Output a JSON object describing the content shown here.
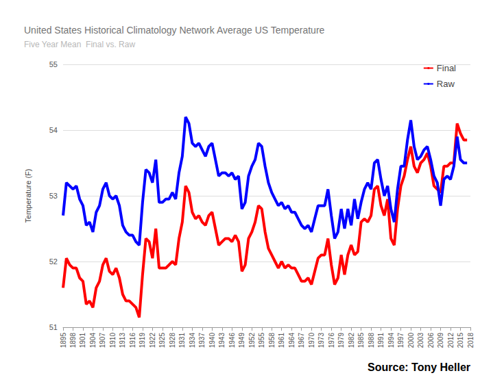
{
  "chart_data": {
    "type": "line",
    "title": "United States Historical Climatology Network Average US Temperature",
    "subtitle": "Five Year Mean  Final vs. Raw",
    "y_label": "Temperature (F)",
    "annotation": "Source: Tony Heller",
    "x": [
      1895,
      1896,
      1897,
      1898,
      1899,
      1900,
      1901,
      1902,
      1903,
      1904,
      1905,
      1906,
      1907,
      1908,
      1909,
      1910,
      1911,
      1912,
      1913,
      1914,
      1915,
      1916,
      1917,
      1918,
      1919,
      1920,
      1921,
      1922,
      1923,
      1924,
      1925,
      1926,
      1927,
      1928,
      1929,
      1930,
      1931,
      1932,
      1933,
      1934,
      1935,
      1936,
      1937,
      1938,
      1939,
      1940,
      1941,
      1942,
      1943,
      1944,
      1945,
      1946,
      1947,
      1948,
      1949,
      1950,
      1951,
      1952,
      1953,
      1954,
      1955,
      1956,
      1957,
      1958,
      1959,
      1960,
      1961,
      1962,
      1963,
      1964,
      1965,
      1966,
      1967,
      1968,
      1969,
      1970,
      1971,
      1972,
      1973,
      1974,
      1975,
      1976,
      1977,
      1978,
      1979,
      1980,
      1981,
      1982,
      1983,
      1984,
      1985,
      1986,
      1987,
      1988,
      1989,
      1990,
      1991,
      1992,
      1993,
      1994,
      1995,
      1996,
      1997,
      1998,
      1999,
      2000,
      2001,
      2002,
      2003,
      2004,
      2005,
      2006,
      2007,
      2008,
      2009,
      2010,
      2011,
      2012,
      2013,
      2014,
      2015,
      2016,
      2017
    ],
    "series": [
      {
        "name": "Final",
        "color": "#ff0000",
        "values": [
          51.6,
          52.05,
          51.95,
          51.9,
          51.9,
          51.75,
          51.7,
          51.35,
          51.4,
          51.3,
          51.6,
          51.7,
          51.95,
          52.05,
          51.85,
          51.8,
          51.9,
          51.75,
          51.5,
          51.4,
          51.4,
          51.35,
          51.3,
          51.15,
          51.8,
          52.35,
          52.3,
          52.05,
          52.5,
          51.9,
          51.9,
          51.9,
          51.95,
          52.0,
          51.95,
          52.35,
          52.6,
          53.15,
          53.05,
          52.75,
          52.65,
          52.7,
          52.6,
          52.55,
          52.7,
          52.75,
          52.5,
          52.25,
          52.3,
          52.35,
          52.35,
          52.3,
          52.4,
          52.3,
          51.85,
          51.95,
          52.35,
          52.45,
          52.6,
          52.85,
          52.8,
          52.45,
          52.2,
          52.1,
          52.0,
          51.9,
          52.0,
          51.9,
          51.95,
          51.9,
          51.9,
          51.8,
          51.7,
          51.7,
          51.75,
          51.65,
          51.85,
          52.05,
          52.1,
          52.1,
          52.35,
          51.95,
          51.65,
          51.75,
          52.1,
          51.8,
          52.1,
          52.25,
          52.1,
          52.15,
          52.6,
          52.65,
          52.6,
          52.7,
          53.1,
          53.15,
          52.85,
          52.7,
          52.95,
          52.35,
          52.25,
          52.8,
          53.15,
          53.3,
          53.55,
          53.75,
          53.45,
          53.35,
          53.5,
          53.55,
          53.65,
          53.45,
          53.15,
          53.1,
          53.05,
          53.45,
          53.45,
          53.5,
          53.5,
          54.1,
          53.95,
          53.85,
          53.85
        ]
      },
      {
        "name": "Raw",
        "color": "#0000ff",
        "values": [
          52.7,
          53.2,
          53.15,
          53.1,
          53.15,
          52.95,
          52.85,
          52.55,
          52.6,
          52.45,
          52.75,
          52.85,
          53.1,
          53.2,
          53.0,
          52.95,
          53.0,
          52.85,
          52.55,
          52.45,
          52.4,
          52.4,
          52.3,
          52.25,
          52.9,
          53.4,
          53.35,
          53.2,
          53.55,
          52.9,
          52.9,
          52.95,
          52.95,
          53.05,
          52.95,
          53.35,
          53.6,
          54.2,
          54.1,
          53.8,
          53.75,
          53.8,
          53.7,
          53.6,
          53.75,
          53.8,
          53.55,
          53.3,
          53.35,
          53.35,
          53.3,
          53.35,
          53.25,
          53.3,
          52.8,
          52.9,
          53.3,
          53.45,
          53.55,
          53.8,
          53.75,
          53.45,
          53.2,
          53.05,
          52.95,
          52.85,
          52.9,
          52.8,
          52.85,
          52.75,
          52.75,
          52.65,
          52.55,
          52.5,
          52.55,
          52.45,
          52.65,
          52.85,
          52.85,
          52.85,
          53.1,
          52.7,
          52.35,
          52.45,
          52.8,
          52.5,
          52.8,
          52.55,
          52.95,
          52.65,
          52.9,
          53.1,
          53.2,
          53.1,
          53.5,
          53.55,
          53.25,
          53.0,
          53.15,
          52.8,
          52.6,
          53.1,
          53.45,
          53.45,
          53.85,
          54.15,
          53.75,
          53.55,
          53.6,
          53.7,
          53.75,
          53.55,
          53.3,
          53.2,
          52.85,
          53.25,
          53.3,
          53.25,
          53.45,
          53.9,
          53.55,
          53.5,
          53.5
        ]
      }
    ],
    "xlim": [
      1895,
      2018
    ],
    "xticks": [
      1895,
      1898,
      1901,
      1904,
      1907,
      1910,
      1913,
      1916,
      1919,
      1922,
      1925,
      1928,
      1931,
      1934,
      1937,
      1940,
      1943,
      1946,
      1949,
      1952,
      1955,
      1958,
      1961,
      1964,
      1967,
      1970,
      1973,
      1976,
      1979,
      1982,
      1985,
      1988,
      1991,
      1994,
      1997,
      2000,
      2003,
      2006,
      2009,
      2012,
      2015,
      2018
    ],
    "ylim": [
      51,
      55
    ],
    "yticks": [
      51,
      52,
      53,
      54,
      55
    ],
    "grid": true,
    "legend": "upper right",
    "marker": "none"
  }
}
